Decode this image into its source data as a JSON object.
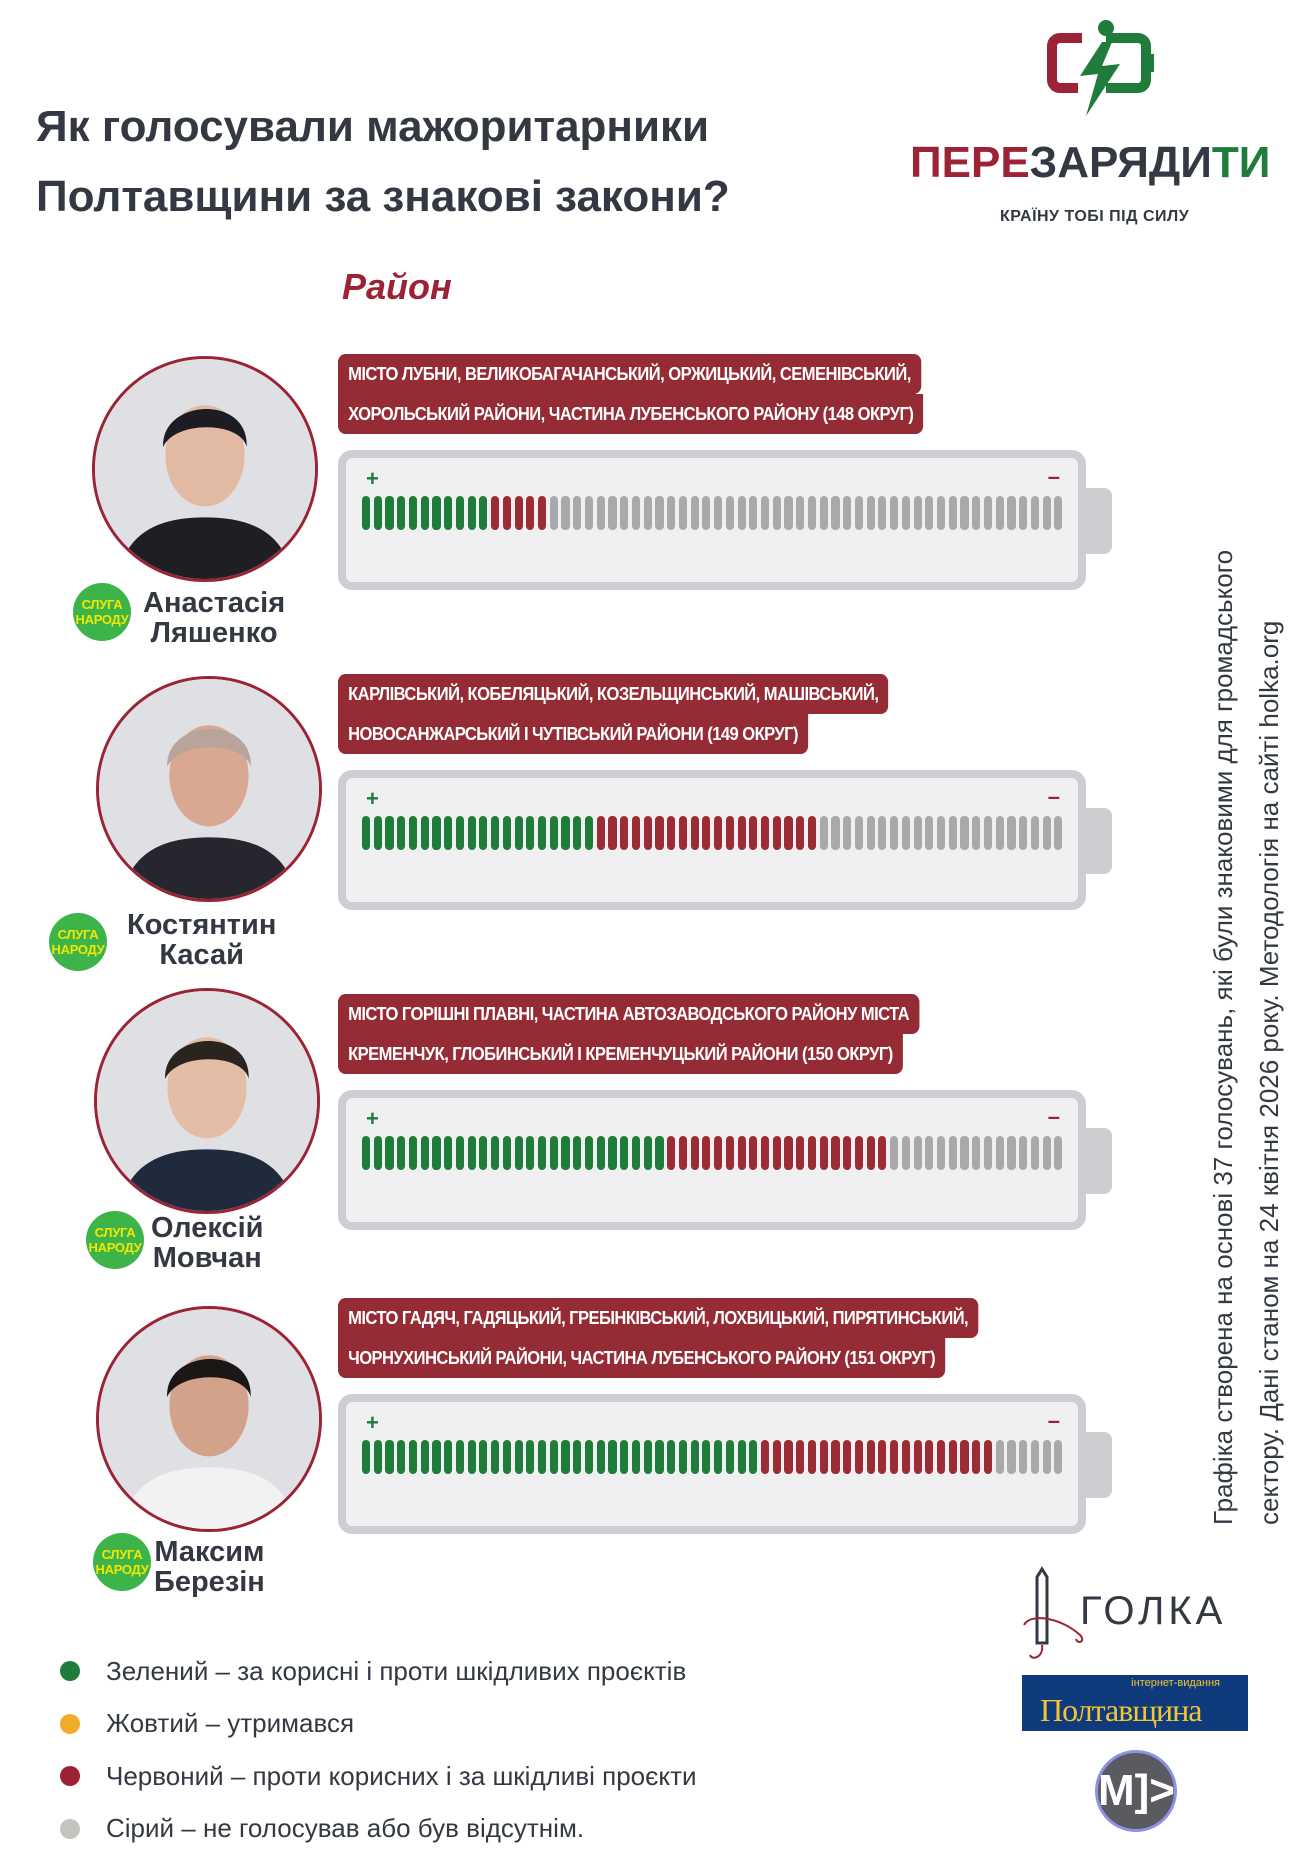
{
  "header": {
    "title_line1": "Як голосували мажоритарники",
    "title_line2": "Полтавщини за знакові закони?"
  },
  "logo": {
    "brand_part1": "ПЕРЕ",
    "brand_part2": "ЗАРЯДИ",
    "brand_part3": "ТИ",
    "tagline": "КРАЇНУ ТОБІ ПІД СИЛУ"
  },
  "region_heading": "Район",
  "colors": {
    "green": "#1f7c3a",
    "red": "#9b2c35",
    "gray": "#a9a9ab",
    "yellow": "#f0ac28",
    "light_gray": "#c4c4bd",
    "accent": "#952c35"
  },
  "deputies": [
    {
      "first": "Анастасія",
      "last": "Ляшенко",
      "party_line1": "СЛУГА",
      "party_line2": "НАРОДУ",
      "district_line1": "Місто Лубни, Великобагачанський, Оржицький, Семенівський,",
      "district_line2": "Хорольський райони, частина Лубенського району (148 округ)",
      "plus": "+",
      "minus": "–",
      "segments": {
        "green": 11,
        "red": 5,
        "gray": 44
      }
    },
    {
      "first": "Костянтин",
      "last": "Касай",
      "party_line1": "СЛУГА",
      "party_line2": "НАРОДУ",
      "district_line1": "Карлівський, Кобеляцький, Козельщинський, Машівський,",
      "district_line2": "Новосанжарський і Чутівський райони (149 округ)",
      "plus": "+",
      "minus": "–",
      "segments": {
        "green": 20,
        "red": 19,
        "gray": 21
      }
    },
    {
      "first": "Олексій",
      "last": "Мовчан",
      "party_line1": "СЛУГА",
      "party_line2": "НАРОДУ",
      "district_line1": "Місто Горішні Плавні, частина Автозаводського району міста",
      "district_line2": "Кременчук, Глобинський і Кременчуцький райони (150 округ)",
      "plus": "+",
      "minus": "–",
      "segments": {
        "green": 26,
        "red": 19,
        "gray": 15
      }
    },
    {
      "first": "Максим",
      "last": "Березін",
      "party_line1": "СЛУГА",
      "party_line2": "НАРОДУ",
      "district_line1": "Місто Гадяч, Гадяцький, Гребінківський, Лохвицький, Пирятинський,",
      "district_line2": "Чорнухинський райони, частина Лубенського району (151 округ)",
      "plus": "+",
      "minus": "–",
      "segments": {
        "green": 34,
        "red": 20,
        "gray": 6
      }
    }
  ],
  "note": {
    "line1": "Графіка створена на основі 37 голосувань, які були знаковими для громадського",
    "line2": "сектору. Дані станом на 24 квітня 2026 року. Методологія на сайті holka.org"
  },
  "legend": [
    {
      "color": "#1f7c3a",
      "text": "Зелений – за корисні і проти шкідливих проєктів"
    },
    {
      "color": "#f0ac28",
      "text": "Жовтий – утримався"
    },
    {
      "color": "#9b2335",
      "text": "Червоний – проти корисних і за шкідливі проєкти"
    },
    {
      "color": "#c4c4bd",
      "text": "Сірий – не голосував або був відсутнім."
    }
  ],
  "partners": {
    "golka": "ГОЛКА",
    "poltava_small": "інтернет-видання",
    "poltava": "Полтавщина",
    "m": "M]>"
  }
}
